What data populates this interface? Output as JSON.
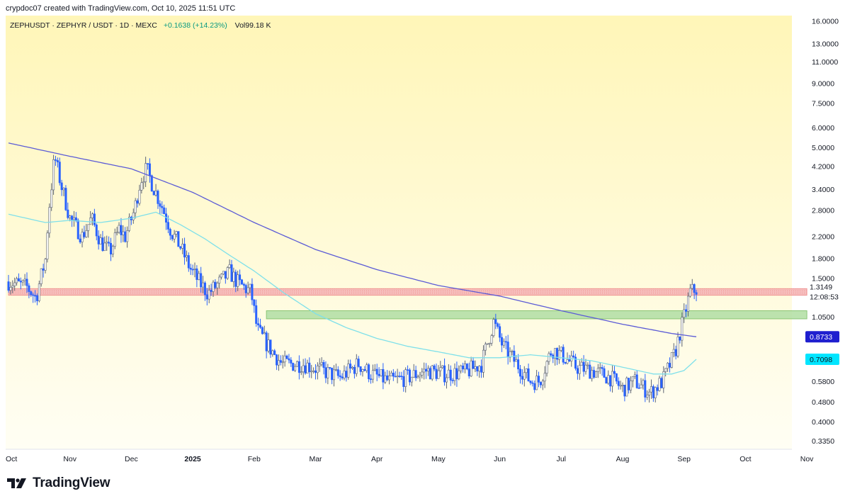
{
  "credit": "crypdoc07 created with TradingView.com, Oct 10, 2025 11:51 UTC",
  "legend": {
    "symbol": "ZEPHUSDT · ZEPHYR / USDT · 1D · MEXC",
    "change": "+0.1638 (+14.23%)",
    "vol_label": "Vol",
    "vol_value": "99.18 K"
  },
  "brand": {
    "name": "TradingView",
    "icon": "tradingview-logo-icon"
  },
  "colors": {
    "background_top": "#fff6b8",
    "background_bottom": "#fffef4",
    "up": "#9aa4b8",
    "down": "#2962ff",
    "ma_long": "#5b5bd6",
    "ma_short": "#7fe0ea",
    "resistance_zone": "#f6b8b8",
    "support_zone": "#b5e0a8"
  },
  "chart_data": {
    "type": "candlestick",
    "title": "",
    "x_axis_labels": [
      "Oct",
      "Nov",
      "Dec",
      "2025",
      "Feb",
      "Mar",
      "Apr",
      "May",
      "Jun",
      "Jul",
      "Aug",
      "Sep",
      "Oct",
      "Nov"
    ],
    "y_scale": "log",
    "y_ticks": [
      16,
      13,
      11,
      9,
      7.5,
      6,
      5,
      4.2,
      3.4,
      2.8,
      2.2,
      1.8,
      1.5,
      1.05,
      0.58,
      0.48,
      0.4,
      0.335
    ],
    "y_tick_labels": [
      "16.0000",
      "13.0000",
      "11.0000",
      "9.0000",
      "7.5000",
      "6.0000",
      "5.0000",
      "4.2000",
      "3.4000",
      "2.8000",
      "2.2000",
      "1.8000",
      "1.5000",
      "1.0500",
      "0.5800",
      "0.4800",
      "0.4000",
      "0.3350"
    ],
    "ylim": [
      0.31,
      16.8
    ],
    "last_price": {
      "value": 1.3149,
      "label": "1.3149",
      "countdown": "12:08:53"
    },
    "ma_long_label": {
      "value": 0.8733,
      "label": "0.8733"
    },
    "ma_short_label": {
      "value": 0.7098,
      "label": "0.7098"
    },
    "zones": [
      {
        "name": "resistance",
        "low": 1.28,
        "high": 1.36,
        "from_month": 0,
        "to_month": 13
      },
      {
        "name": "support",
        "low": 1.03,
        "high": 1.11,
        "from_month": 4.2,
        "to_month": 13
      }
    ],
    "price_path": [
      [
        0.0,
        1.45
      ],
      [
        0.3,
        1.38
      ],
      [
        0.45,
        1.25
      ],
      [
        0.5,
        1.42
      ],
      [
        0.6,
        1.78
      ],
      [
        0.65,
        2.7
      ],
      [
        0.75,
        4.6
      ],
      [
        0.85,
        3.6
      ],
      [
        1.0,
        2.6
      ],
      [
        1.2,
        2.2
      ],
      [
        1.35,
        2.6
      ],
      [
        1.5,
        2.1
      ],
      [
        1.65,
        1.9
      ],
      [
        1.8,
        2.35
      ],
      [
        1.9,
        2.2
      ],
      [
        2.05,
        2.8
      ],
      [
        2.15,
        3.7
      ],
      [
        2.25,
        4.1
      ],
      [
        2.35,
        3.5
      ],
      [
        2.5,
        2.9
      ],
      [
        2.65,
        2.3
      ],
      [
        2.8,
        2.0
      ],
      [
        2.95,
        1.65
      ],
      [
        3.1,
        1.45
      ],
      [
        3.25,
        1.3
      ],
      [
        3.45,
        1.45
      ],
      [
        3.6,
        1.58
      ],
      [
        3.75,
        1.42
      ],
      [
        3.95,
        1.32
      ],
      [
        4.05,
        0.93
      ],
      [
        4.2,
        0.82
      ],
      [
        4.45,
        0.68
      ],
      [
        4.8,
        0.68
      ],
      [
        5.1,
        0.64
      ],
      [
        5.4,
        0.6
      ],
      [
        5.7,
        0.68
      ],
      [
        5.9,
        0.62
      ],
      [
        6.2,
        0.58
      ],
      [
        6.5,
        0.6
      ],
      [
        6.8,
        0.64
      ],
      [
        7.1,
        0.62
      ],
      [
        7.45,
        0.63
      ],
      [
        7.7,
        0.68
      ],
      [
        7.9,
        1.0
      ],
      [
        8.05,
        0.8
      ],
      [
        8.3,
        0.67
      ],
      [
        8.5,
        0.58
      ],
      [
        8.65,
        0.58
      ],
      [
        8.85,
        0.78
      ],
      [
        9.0,
        0.74
      ],
      [
        9.25,
        0.66
      ],
      [
        9.5,
        0.64
      ],
      [
        9.8,
        0.6
      ],
      [
        10.0,
        0.54
      ],
      [
        10.2,
        0.58
      ],
      [
        10.45,
        0.52
      ],
      [
        10.65,
        0.58
      ],
      [
        10.85,
        0.75
      ],
      [
        11.0,
        1.05
      ],
      [
        11.1,
        1.32
      ],
      [
        11.2,
        1.35
      ]
    ],
    "ma_long_path": [
      [
        0.0,
        5.2
      ],
      [
        1.0,
        4.6
      ],
      [
        2.0,
        4.1
      ],
      [
        3.0,
        3.3
      ],
      [
        4.0,
        2.5
      ],
      [
        5.0,
        1.95
      ],
      [
        6.0,
        1.62
      ],
      [
        7.0,
        1.4
      ],
      [
        8.0,
        1.27
      ],
      [
        9.0,
        1.11
      ],
      [
        10.0,
        0.98
      ],
      [
        10.8,
        0.9
      ],
      [
        11.2,
        0.8733
      ]
    ],
    "ma_short_path": [
      [
        0.0,
        2.7
      ],
      [
        0.6,
        2.5
      ],
      [
        1.0,
        2.55
      ],
      [
        1.5,
        2.5
      ],
      [
        2.0,
        2.6
      ],
      [
        2.4,
        2.75
      ],
      [
        2.8,
        2.45
      ],
      [
        3.2,
        2.15
      ],
      [
        3.6,
        1.85
      ],
      [
        4.0,
        1.6
      ],
      [
        4.5,
        1.3
      ],
      [
        5.0,
        1.08
      ],
      [
        5.5,
        0.95
      ],
      [
        6.0,
        0.86
      ],
      [
        6.5,
        0.8
      ],
      [
        7.0,
        0.76
      ],
      [
        7.5,
        0.72
      ],
      [
        8.0,
        0.72
      ],
      [
        8.5,
        0.74
      ],
      [
        9.0,
        0.72
      ],
      [
        9.5,
        0.7
      ],
      [
        10.0,
        0.66
      ],
      [
        10.5,
        0.62
      ],
      [
        10.8,
        0.62
      ],
      [
        11.0,
        0.64
      ],
      [
        11.2,
        0.7098
      ]
    ]
  }
}
